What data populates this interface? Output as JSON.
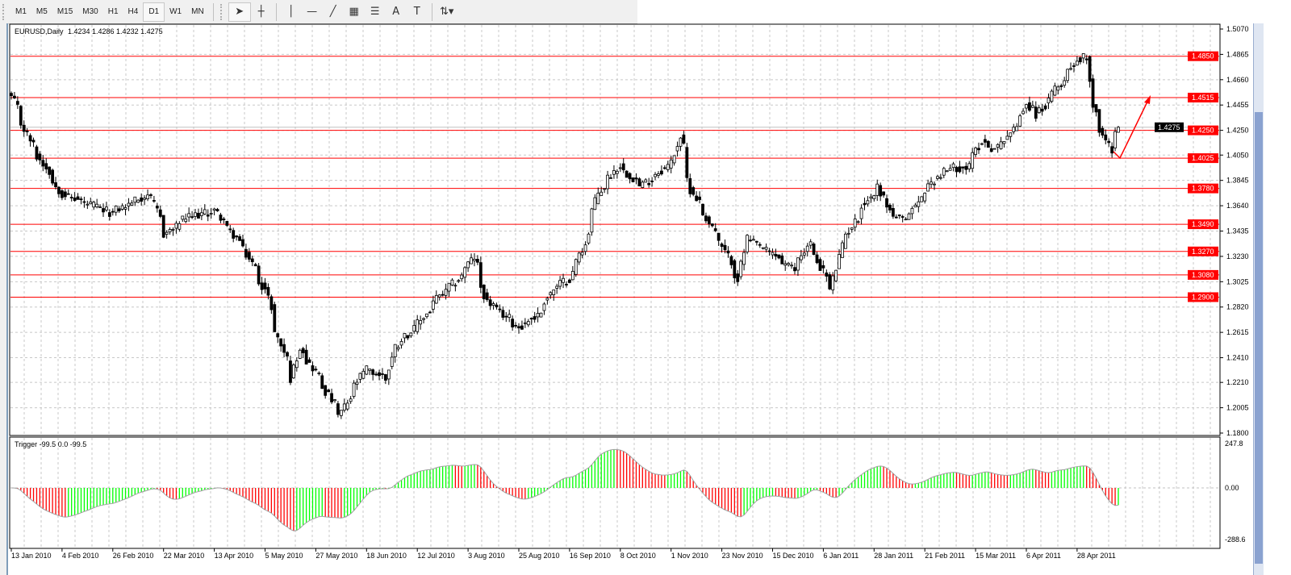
{
  "toolbar": {
    "timeframes": [
      "M1",
      "M5",
      "M15",
      "M30",
      "H1",
      "H4",
      "D1",
      "W1",
      "MN"
    ],
    "active_timeframe": "D1",
    "tools": [
      "cursor-arrow",
      "crosshair",
      "vertical-line",
      "horizontal-line",
      "trendline",
      "equidistant-channel",
      "fibonacci-retracement",
      "text",
      "text-label",
      "arrows-dropdown"
    ],
    "tool_glyphs": {
      "cursor-arrow": "➤",
      "crosshair": "┼",
      "vertical-line": "│",
      "horizontal-line": "—",
      "trendline": "╱",
      "equidistant-channel": "▦",
      "fibonacci-retracement": "☰",
      "text": "A",
      "text-label": "T",
      "arrows-dropdown": "⇅▾"
    }
  },
  "chart": {
    "symbol_title": "EURUSD,Daily",
    "ohlc_text": "1.4234 1.4286 1.4232 1.4275",
    "last_bar": {
      "open": 1.4234,
      "high": 1.4286,
      "low": 1.4232,
      "close": 1.4275
    },
    "price_axis_ticks": [
      "1.5070",
      "1.4865",
      "1.4660",
      "1.4455",
      "1.4250",
      "1.4050",
      "1.3845",
      "1.3640",
      "1.3435",
      "1.3230",
      "1.3025",
      "1.2820",
      "1.2615",
      "1.2410",
      "1.2210",
      "1.2005",
      "1.1800"
    ],
    "price_range": [
      1.18,
      1.507
    ],
    "current_price_label": "1.4275",
    "horizontal_levels": [
      "1.4850",
      "1.4515",
      "1.4250",
      "1.4025",
      "1.3780",
      "1.3490",
      "1.3270",
      "1.3080",
      "1.2900"
    ],
    "level_color": "#ff0000",
    "date_labels": [
      "13 Jan 2010",
      "4 Feb 2010",
      "26 Feb 2010",
      "22 Mar 2010",
      "13 Apr 2010",
      "5 May 2010",
      "27 May 2010",
      "18 Jun 2010",
      "12 Jul 2010",
      "3 Aug 2010",
      "25 Aug 2010",
      "16 Sep 2010",
      "8 Oct 2010",
      "1 Nov 2010",
      "23 Nov 2010",
      "15 Dec 2010",
      "6 Jan 2011",
      "28 Jan 2011",
      "21 Feb 2011",
      "15 Mar 2011",
      "6 Apr 2011",
      "28 Apr 2011"
    ],
    "price_path": [
      [
        "2010-01-13",
        1.452
      ],
      [
        "2010-01-22",
        1.413
      ],
      [
        "2010-02-04",
        1.374
      ],
      [
        "2010-02-26",
        1.358
      ],
      [
        "2010-03-15",
        1.374
      ],
      [
        "2010-03-22",
        1.341
      ],
      [
        "2010-03-31",
        1.354
      ],
      [
        "2010-04-13",
        1.36
      ],
      [
        "2010-04-26",
        1.328
      ],
      [
        "2010-05-05",
        1.296
      ],
      [
        "2010-05-10",
        1.262
      ],
      [
        "2010-05-17",
        1.224
      ],
      [
        "2010-05-20",
        1.25
      ],
      [
        "2010-05-27",
        1.23
      ],
      [
        "2010-06-07",
        1.194
      ],
      [
        "2010-06-18",
        1.232
      ],
      [
        "2010-06-28",
        1.224
      ],
      [
        "2010-07-01",
        1.25
      ],
      [
        "2010-07-12",
        1.269
      ],
      [
        "2010-07-20",
        1.289
      ],
      [
        "2010-07-28",
        1.302
      ],
      [
        "2010-08-05",
        1.322
      ],
      [
        "2010-08-11",
        1.286
      ],
      [
        "2010-08-25",
        1.266
      ],
      [
        "2010-09-02",
        1.275
      ],
      [
        "2010-09-09",
        1.296
      ],
      [
        "2010-09-16",
        1.305
      ],
      [
        "2010-09-22",
        1.328
      ],
      [
        "2010-09-29",
        1.374
      ],
      [
        "2010-10-08",
        1.397
      ],
      [
        "2010-10-18",
        1.38
      ],
      [
        "2010-11-01",
        1.4
      ],
      [
        "2010-11-04",
        1.42
      ],
      [
        "2010-11-09",
        1.377
      ],
      [
        "2010-11-16",
        1.354
      ],
      [
        "2010-11-23",
        1.33
      ],
      [
        "2010-11-30",
        1.305
      ],
      [
        "2010-12-03",
        1.338
      ],
      [
        "2010-12-10",
        1.33
      ],
      [
        "2010-12-15",
        1.325
      ],
      [
        "2010-12-24",
        1.312
      ],
      [
        "2010-12-31",
        1.334
      ],
      [
        "2011-01-10",
        1.296
      ],
      [
        "2011-01-14",
        1.331
      ],
      [
        "2011-01-24",
        1.364
      ],
      [
        "2011-01-31",
        1.38
      ],
      [
        "2011-02-04",
        1.36
      ],
      [
        "2011-02-11",
        1.351
      ],
      [
        "2011-02-17",
        1.367
      ],
      [
        "2011-02-24",
        1.385
      ],
      [
        "2011-03-04",
        1.395
      ],
      [
        "2011-03-11",
        1.395
      ],
      [
        "2011-03-17",
        1.416
      ],
      [
        "2011-03-23",
        1.41
      ],
      [
        "2011-03-31",
        1.425
      ],
      [
        "2011-04-06",
        1.446
      ],
      [
        "2011-04-11",
        1.438
      ],
      [
        "2011-04-18",
        1.455
      ],
      [
        "2011-04-28",
        1.482
      ],
      [
        "2011-05-03",
        1.485
      ],
      [
        "2011-05-05",
        1.446
      ],
      [
        "2011-05-10",
        1.42
      ],
      [
        "2011-05-13",
        1.41
      ],
      [
        "2011-05-17",
        1.4275
      ]
    ],
    "arrow_color": "#ff0000"
  },
  "indicator": {
    "legend": "Trigger -99.5 0.0 -99.5",
    "axis_ticks": [
      "247.8",
      "0.00",
      "-288.6"
    ],
    "range": [
      -288.6,
      247.8
    ],
    "rising_color": "#00ff00",
    "falling_color": "#ff0000",
    "line_color": "#a0a0a0"
  }
}
